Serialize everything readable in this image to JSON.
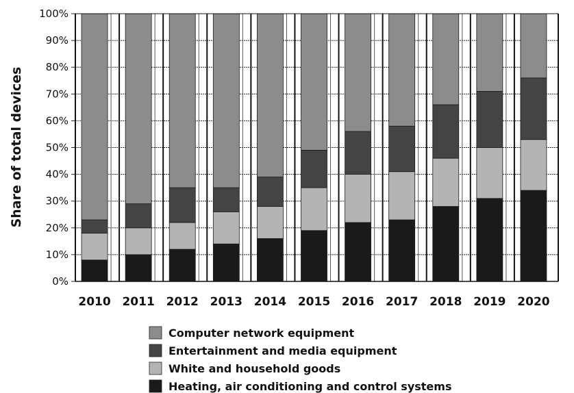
{
  "chart_data": {
    "type": "bar",
    "stacked": true,
    "ylabel": "Share of total devices",
    "xlabel": "",
    "ylim": [
      0,
      100
    ],
    "y_ticks": [
      "0%",
      "10%",
      "20%",
      "30%",
      "40%",
      "50%",
      "60%",
      "70%",
      "80%",
      "90%",
      "100%"
    ],
    "categories": [
      "2010",
      "2011",
      "2012",
      "2013",
      "2014",
      "2015",
      "2016",
      "2017",
      "2018",
      "2019",
      "2020"
    ],
    "series": [
      {
        "name": "Heating, air conditioning and control systems",
        "color": "#1a1a1a",
        "values": [
          8,
          10,
          12,
          14,
          16,
          19,
          22,
          23,
          28,
          31,
          34
        ]
      },
      {
        "name": "White and household goods",
        "color": "#b4b4b4",
        "values": [
          10,
          10,
          10,
          12,
          12,
          16,
          18,
          18,
          18,
          19,
          19
        ]
      },
      {
        "name": "Entertainment and media equipment",
        "color": "#444444",
        "values": [
          5,
          9,
          13,
          9,
          11,
          14,
          16,
          17,
          20,
          21,
          23
        ]
      },
      {
        "name": "Computer network equipment",
        "color": "#8c8c8c",
        "values": [
          77,
          71,
          65,
          65,
          61,
          51,
          44,
          42,
          34,
          29,
          24
        ]
      }
    ],
    "legend": {
      "position": "bottom",
      "order": [
        "Computer network equipment",
        "Entertainment and media equipment",
        "White and household goods",
        "Heating, air conditioning and control systems"
      ]
    },
    "grid": true
  }
}
